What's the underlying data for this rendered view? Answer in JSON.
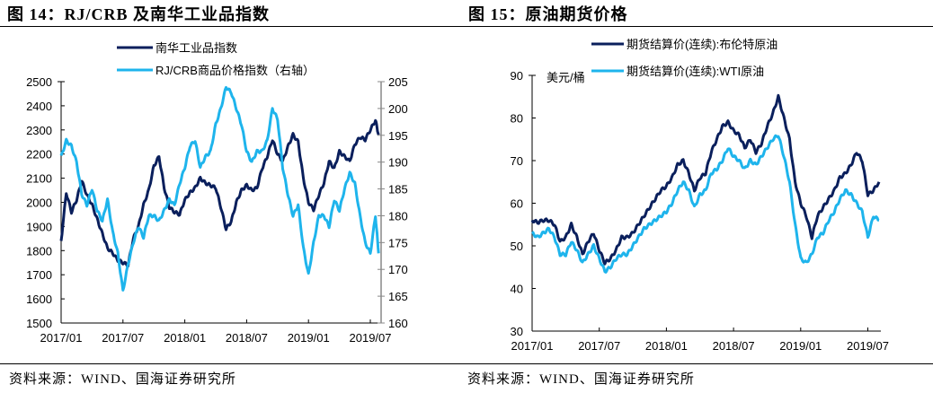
{
  "left": {
    "title": "图 14：RJ/CRB 及南华工业品指数",
    "source": "资料来源：WIND、国海证券研究所"
  },
  "right": {
    "title": "图 15：原油期货价格",
    "source": "资料来源：WIND、国海证券研究所"
  },
  "chart_data": [
    {
      "type": "line",
      "title": "图 14：RJ/CRB 及南华工业品指数",
      "xlabel": "",
      "ylabel": "",
      "x_ticks": [
        "2017/01",
        "2017/07",
        "2018/01",
        "2018/07",
        "2019/01",
        "2019/07"
      ],
      "y_left": {
        "ticks": [
          1500,
          1600,
          1700,
          1800,
          1900,
          2000,
          2100,
          2200,
          2300,
          2400,
          2500
        ],
        "range": [
          1500,
          2500
        ]
      },
      "y_right": {
        "ticks": [
          160,
          165,
          170,
          175,
          180,
          185,
          190,
          195,
          200,
          205
        ],
        "range": [
          160,
          205
        ]
      },
      "grid": false,
      "legend_position": "top-center",
      "x_range_months": [
        0,
        30.8
      ],
      "series": [
        {
          "name": "南华工业品指数",
          "axis": "left",
          "color": "#0a1f5c",
          "x_months": [
            0,
            0.5,
            1,
            1.5,
            2,
            2.5,
            3,
            3.5,
            4,
            4.5,
            5,
            5.5,
            6,
            6.5,
            7,
            7.5,
            8,
            8.5,
            9,
            9.5,
            10,
            10.5,
            11,
            11.5,
            12,
            12.5,
            13,
            13.5,
            14,
            14.5,
            15,
            15.5,
            16,
            16.5,
            17,
            17.5,
            18,
            18.5,
            19,
            19.5,
            20,
            20.5,
            21,
            21.5,
            22,
            22.5,
            23,
            23.5,
            24,
            24.5,
            25,
            25.5,
            26,
            26.5,
            27,
            27.5,
            28,
            28.5,
            29,
            29.5,
            30,
            30.5,
            30.8
          ],
          "values": [
            1840,
            2040,
            1960,
            2010,
            2090,
            2030,
            1990,
            1930,
            1870,
            1810,
            1790,
            1760,
            1750,
            1740,
            1850,
            1900,
            1990,
            2050,
            2150,
            2190,
            2060,
            1980,
            1960,
            1950,
            2010,
            2040,
            2060,
            2100,
            2080,
            2070,
            2060,
            1980,
            1890,
            1920,
            2000,
            2050,
            2070,
            2050,
            2060,
            2140,
            2190,
            2260,
            2200,
            2170,
            2230,
            2280,
            2250,
            2100,
            2000,
            1970,
            2030,
            2080,
            2170,
            2140,
            2210,
            2190,
            2170,
            2240,
            2270,
            2260,
            2300,
            2340,
            2280
          ]
        },
        {
          "name": "RJ/CRB商品价格指数（右轴）",
          "axis": "right",
          "color": "#1eb4ec",
          "x_months": [
            0,
            0.5,
            1,
            1.5,
            2,
            2.5,
            3,
            3.5,
            4,
            4.5,
            5,
            5.5,
            6,
            6.5,
            7,
            7.5,
            8,
            8.5,
            9,
            9.5,
            10,
            10.5,
            11,
            11.5,
            12,
            12.5,
            13,
            13.5,
            14,
            14.5,
            15,
            15.5,
            16,
            16.5,
            17,
            17.5,
            18,
            18.5,
            19,
            19.5,
            20,
            20.5,
            21,
            21.5,
            22,
            22.5,
            23,
            23.5,
            24,
            24.5,
            25,
            25.5,
            26,
            26.5,
            27,
            27.5,
            28,
            28.5,
            29,
            29.5,
            30,
            30.5,
            30.8
          ],
          "values": [
            191,
            194,
            193,
            190,
            184,
            182,
            185,
            181,
            179,
            183,
            177,
            173,
            166,
            171,
            175,
            178,
            176,
            180,
            180,
            179,
            181,
            183,
            182,
            186,
            189,
            193,
            194,
            189,
            191,
            192,
            197,
            200,
            204,
            203,
            200,
            197,
            192,
            190,
            192,
            192,
            194,
            200,
            198,
            189,
            184,
            180,
            182,
            174,
            169,
            175,
            180,
            180,
            178,
            183,
            181,
            185,
            188,
            186,
            180,
            175,
            173,
            180,
            173
          ]
        }
      ]
    },
    {
      "type": "line",
      "title": "图 15：原油期货价格",
      "xlabel": "",
      "ylabel": "美元/桶",
      "x_ticks": [
        "2017/01",
        "2017/07",
        "2018/01",
        "2018/07",
        "2019/01",
        "2019/07"
      ],
      "y_left": {
        "ticks": [
          30,
          40,
          50,
          60,
          70,
          80,
          90
        ],
        "range": [
          30,
          90
        ]
      },
      "grid": false,
      "legend_position": "top-center",
      "x_range_months": [
        0,
        31
      ],
      "series": [
        {
          "name": "期货结算价(连续):布伦特原油",
          "color": "#0a1f5c",
          "x_months": [
            0,
            0.5,
            1,
            1.5,
            2,
            2.5,
            3,
            3.5,
            4,
            4.5,
            5,
            5.5,
            6,
            6.5,
            7,
            7.5,
            8,
            8.5,
            9,
            9.5,
            10,
            10.5,
            11,
            11.5,
            12,
            12.5,
            13,
            13.5,
            14,
            14.5,
            15,
            15.5,
            16,
            16.5,
            17,
            17.5,
            18,
            18.5,
            19,
            19.5,
            20,
            20.5,
            21,
            21.5,
            22,
            22.5,
            23,
            23.5,
            24,
            24.5,
            25,
            25.5,
            26,
            26.5,
            27,
            27.5,
            28,
            28.5,
            29,
            29.5,
            30,
            30.5,
            31
          ],
          "values": [
            56,
            55.5,
            56,
            56,
            55,
            51,
            52,
            55,
            52,
            48,
            51,
            53,
            49,
            46,
            47,
            49,
            52,
            52,
            53,
            55,
            57,
            59,
            61,
            63,
            64,
            66,
            69,
            70,
            67,
            63,
            66,
            67,
            72,
            75,
            78,
            79,
            77,
            76,
            73,
            75,
            72,
            74,
            78,
            81,
            85,
            80,
            75,
            65,
            60,
            57,
            52,
            57,
            59,
            61,
            63,
            66,
            67,
            69,
            72,
            70,
            62,
            63,
            65
          ]
        },
        {
          "name": "期货结算价(连续):WTI原油",
          "color": "#1eb4ec",
          "x_months": [
            0,
            0.5,
            1,
            1.5,
            2,
            2.5,
            3,
            3.5,
            4,
            4.5,
            5,
            5.5,
            6,
            6.5,
            7,
            7.5,
            8,
            8.5,
            9,
            9.5,
            10,
            10.5,
            11,
            11.5,
            12,
            12.5,
            13,
            13.5,
            14,
            14.5,
            15,
            15.5,
            16,
            16.5,
            17,
            17.5,
            18,
            18.5,
            19,
            19.5,
            20,
            20.5,
            21,
            21.5,
            22,
            22.5,
            23,
            23.5,
            24,
            24.5,
            25,
            25.5,
            26,
            26.5,
            27,
            27.5,
            28,
            28.5,
            29,
            29.5,
            30,
            30.5,
            31
          ],
          "values": [
            53,
            52,
            53,
            54,
            52,
            48,
            48,
            51,
            49,
            46,
            48,
            50,
            47,
            44,
            45,
            47,
            48,
            48,
            50,
            52,
            54,
            55,
            56,
            57,
            58,
            60,
            63,
            65,
            63,
            59,
            62,
            63,
            67,
            68,
            70,
            73,
            71,
            70,
            68,
            70,
            69,
            71,
            73,
            75,
            76,
            71,
            65,
            55,
            47,
            46,
            48,
            52,
            53,
            56,
            58,
            61,
            63,
            62,
            60,
            58,
            52,
            57,
            56
          ]
        }
      ]
    }
  ]
}
